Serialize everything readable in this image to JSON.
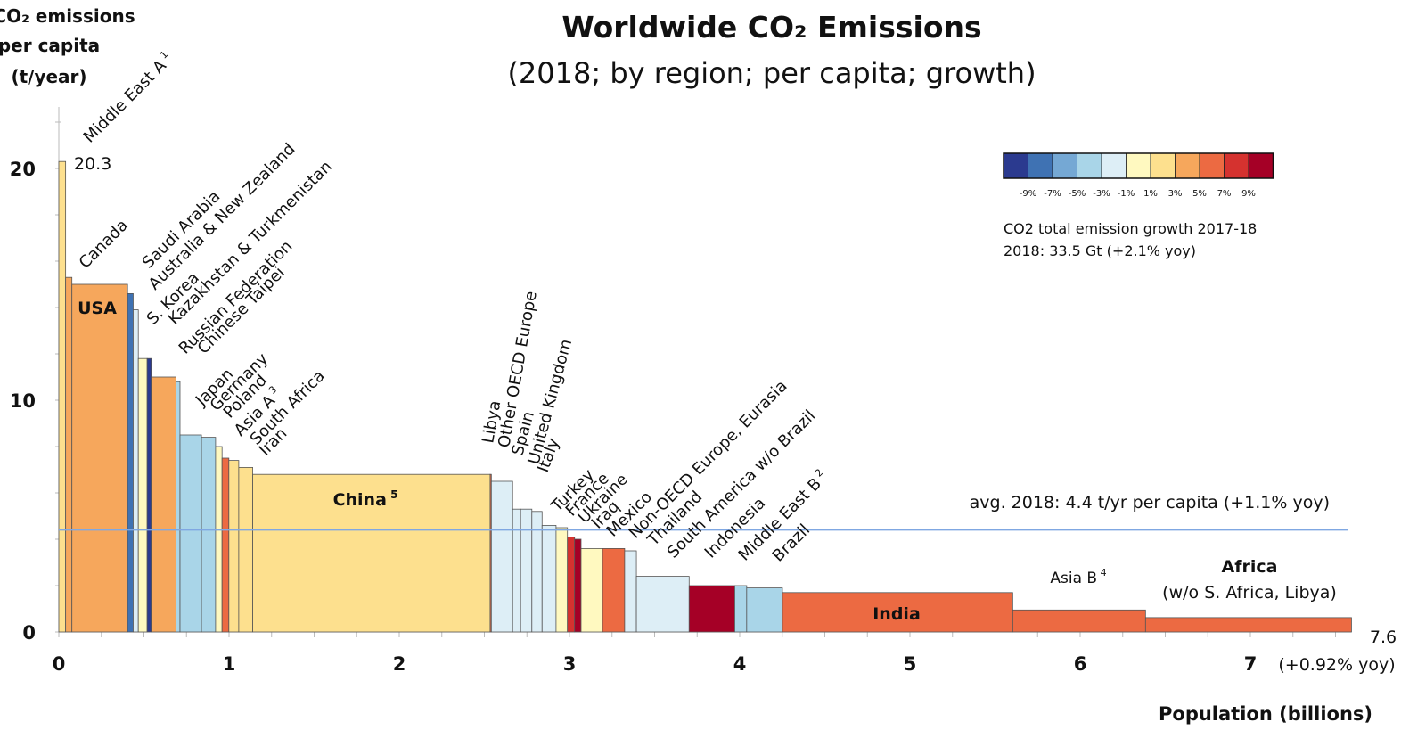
{
  "chart_data": {
    "type": "bar",
    "variant": "variable-width",
    "title": "Worldwide CO₂ Emissions",
    "subtitle": "(2018; by region; per capita; growth)",
    "ylabel_lines": [
      "CO₂ emissions",
      "per capita",
      "(t/year)"
    ],
    "xlabel": "Population (billions)",
    "ylim": [
      0,
      22
    ],
    "xlim": [
      0,
      7.6
    ],
    "yticks": [
      0,
      10,
      20
    ],
    "xticks": [
      0,
      1,
      2,
      3,
      4,
      5,
      6,
      7
    ],
    "x_end_label": "7.6",
    "x_end_sublabel": "(+0.92% yoy)",
    "average": {
      "value": 4.4,
      "label": "avg. 2018: 4.4 t/yr per capita (+1.1% yoy)"
    },
    "legend": {
      "placement": "top-right",
      "colors": [
        "#2b3a8f",
        "#3f72b3",
        "#75a8d4",
        "#a9d5e8",
        "#ddeef6",
        "#fff9c0",
        "#fde08e",
        "#f6a75c",
        "#ec6a42",
        "#d5322f",
        "#a50026"
      ],
      "ticks": [
        "-9%",
        "-7%",
        "-5%",
        "-3%",
        "-1%",
        "1%",
        "3%",
        "5%",
        "7%",
        "9%"
      ],
      "caption_lines": [
        "CO2 total emission growth 2017-18",
        "2018: 33.5 Gt (+2.1% yoy)"
      ]
    },
    "regions": [
      {
        "name": "Middle East A",
        "sup": "1",
        "population": 0.04,
        "per_capita": 20.3,
        "color": "#fde08e",
        "value_label": "20.3"
      },
      {
        "name": "Canada",
        "population": 0.037,
        "per_capita": 15.3,
        "color": "#f6a75c"
      },
      {
        "name": "USA",
        "population": 0.327,
        "per_capita": 15.0,
        "color": "#f6a75c",
        "inside_label": "USA"
      },
      {
        "name": "Saudi Arabia",
        "population": 0.033,
        "per_capita": 14.6,
        "color": "#3f72b3"
      },
      {
        "name": "Australia & New Zealand",
        "population": 0.03,
        "per_capita": 13.9,
        "color": "#ddeef6"
      },
      {
        "name": "S. Korea",
        "population": 0.052,
        "per_capita": 11.8,
        "color": "#fff9c0"
      },
      {
        "name": "Kazakhstan & Turkmenistan",
        "population": 0.024,
        "per_capita": 11.8,
        "color": "#2b3a8f"
      },
      {
        "name": "Russian Federation",
        "population": 0.145,
        "per_capita": 11.0,
        "color": "#f6a75c"
      },
      {
        "name": "Chinese Taipei",
        "population": 0.024,
        "per_capita": 10.8,
        "color": "#a9d5e8"
      },
      {
        "name": "Japan",
        "population": 0.126,
        "per_capita": 8.5,
        "color": "#a9d5e8"
      },
      {
        "name": "Germany",
        "population": 0.083,
        "per_capita": 8.4,
        "color": "#a9d5e8"
      },
      {
        "name": "Poland",
        "population": 0.038,
        "per_capita": 8.0,
        "color": "#fff9c0"
      },
      {
        "name": "Asia A",
        "sup": "3",
        "population": 0.04,
        "per_capita": 7.5,
        "color": "#ec6a42"
      },
      {
        "name": "South Africa",
        "population": 0.058,
        "per_capita": 7.4,
        "color": "#fde08e"
      },
      {
        "name": "Iran",
        "population": 0.082,
        "per_capita": 7.1,
        "color": "#fde08e"
      },
      {
        "name": "China",
        "sup": "5",
        "population": 1.395,
        "per_capita": 6.8,
        "color": "#fde08e",
        "inside_label": "China"
      },
      {
        "name": "Libya",
        "population": 0.007,
        "per_capita": 6.8,
        "color": "#ec6a42"
      },
      {
        "name": "Other OECD Europe",
        "population": 0.125,
        "per_capita": 6.5,
        "color": "#ddeef6"
      },
      {
        "name": "Spain",
        "population": 0.047,
        "per_capita": 5.3,
        "color": "#ddeef6"
      },
      {
        "name": "United Kingdom",
        "population": 0.066,
        "per_capita": 5.3,
        "color": "#ddeef6"
      },
      {
        "name": "Italy",
        "population": 0.06,
        "per_capita": 5.2,
        "color": "#ddeef6"
      },
      {
        "name": "Turkey",
        "population": 0.082,
        "per_capita": 4.6,
        "color": "#ddeef6"
      },
      {
        "name": "France",
        "population": 0.067,
        "per_capita": 4.5,
        "color": "#fff9c0"
      },
      {
        "name": "Ukraine",
        "population": 0.042,
        "per_capita": 4.1,
        "color": "#d5322f"
      },
      {
        "name": "Iraq",
        "population": 0.038,
        "per_capita": 4.0,
        "color": "#a50026"
      },
      {
        "name": "Mexico",
        "population": 0.126,
        "per_capita": 3.6,
        "color": "#fff9c0"
      },
      {
        "name": "Non-OECD Europe, Eurasia",
        "population": 0.13,
        "per_capita": 3.6,
        "color": "#ec6a42"
      },
      {
        "name": "Thailand",
        "population": 0.069,
        "per_capita": 3.5,
        "color": "#ddeef6"
      },
      {
        "name": "South America w/o Brazil",
        "population": 0.31,
        "per_capita": 2.4,
        "color": "#ddeef6"
      },
      {
        "name": "Indonesia",
        "population": 0.268,
        "per_capita": 2.0,
        "color": "#a50026"
      },
      {
        "name": "Middle East B",
        "sup": "2",
        "population": 0.07,
        "per_capita": 2.0,
        "color": "#a9d5e8"
      },
      {
        "name": "Brazil",
        "population": 0.21,
        "per_capita": 1.9,
        "color": "#a9d5e8"
      },
      {
        "name": "India",
        "population": 1.353,
        "per_capita": 1.7,
        "color": "#ec6a42",
        "inside_label": "India"
      },
      {
        "name": "Asia B",
        "sup": "4",
        "population": 0.78,
        "per_capita": 0.95,
        "color": "#ec6a42"
      },
      {
        "name": "Africa",
        "population": 1.21,
        "per_capita": 0.62,
        "color": "#ec6a42"
      }
    ],
    "top_labels": [
      {
        "region": "Middle East A",
        "text": "Middle East A",
        "sup": "1"
      },
      {
        "region": "Canada",
        "text": "Canada"
      },
      {
        "region": "Saudi Arabia",
        "text": "Saudi Arabia"
      },
      {
        "region": "Australia & New Zealand",
        "text": "Australia & New Zealand"
      },
      {
        "region": "S. Korea",
        "text": "S. Korea"
      },
      {
        "region": "Kazakhstan & Turkmenistan",
        "text": "Kazakhstan & Turkmenistan"
      },
      {
        "region": "Russian Federation",
        "text": "Russian Federation"
      },
      {
        "region": "Chinese Taipei",
        "text": "Chinese Taipei"
      },
      {
        "region": "Japan",
        "text": "Japan"
      },
      {
        "region": "Germany",
        "text": "Germany"
      },
      {
        "region": "Poland",
        "text": "Poland"
      },
      {
        "region": "Asia A",
        "text": "Asia A",
        "sup": "3"
      },
      {
        "region": "South Africa",
        "text": "South Africa"
      },
      {
        "region": "Iran",
        "text": "Iran"
      },
      {
        "region": "Libya",
        "text": "Libya"
      },
      {
        "region": "Other OECD Europe",
        "text": "Other OECD Europe"
      },
      {
        "region": "Spain",
        "text": "Spain"
      },
      {
        "region": "United Kingdom",
        "text": "United Kingdom"
      },
      {
        "region": "Italy",
        "text": "Italy"
      },
      {
        "region": "Turkey",
        "text": "Turkey"
      },
      {
        "region": "France",
        "text": "France"
      },
      {
        "region": "Ukraine",
        "text": "Ukraine"
      },
      {
        "region": "Iraq",
        "text": "Iraq"
      },
      {
        "region": "Mexico",
        "text": "Mexico"
      },
      {
        "region": "Non-OECD Europe, Eurasia",
        "text": "Non-OECD Europe, Eurasia"
      },
      {
        "region": "Thailand",
        "text": "Thailand"
      },
      {
        "region": "South America w/o Brazil",
        "text": "South America w/o Brazil"
      },
      {
        "region": "Indonesia",
        "text": "Indonesia"
      },
      {
        "region": "Middle East B",
        "text": "Middle East B",
        "sup": "2"
      },
      {
        "region": "Brazil",
        "text": "Brazil"
      }
    ],
    "inside_labels": [
      {
        "region": "USA",
        "text": "USA"
      },
      {
        "region": "China",
        "text": "China",
        "sup": "5"
      },
      {
        "region": "India",
        "text": "India"
      }
    ],
    "right_labels": {
      "asia_b": {
        "text": "Asia B",
        "sup": "4"
      },
      "africa_lines": [
        "Africa",
        "(w/o S. Africa, Libya)"
      ]
    }
  }
}
